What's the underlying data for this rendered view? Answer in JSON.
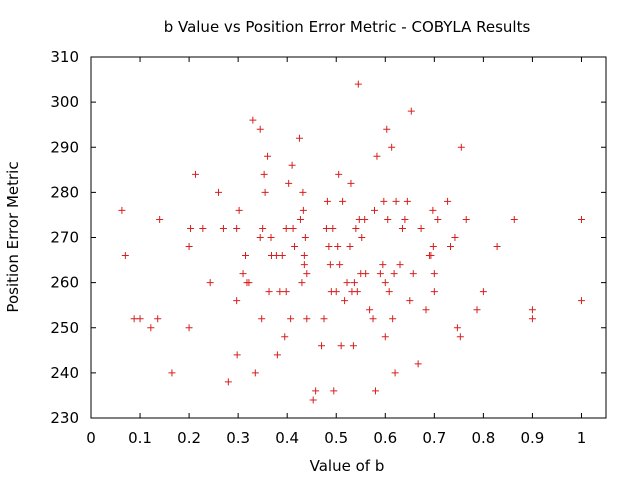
{
  "chart_data": {
    "type": "scatter",
    "title": "b Value vs Position Error Metric - COBYLA Results",
    "xlabel": "Value of b",
    "ylabel": "Position Error Metric",
    "xlim": [
      0,
      1.05
    ],
    "ylim": [
      230,
      310
    ],
    "xticks": [
      "0",
      "0.1",
      "0.2",
      "0.3",
      "0.4",
      "0.5",
      "0.6",
      "0.7",
      "0.8",
      "0.9",
      "1"
    ],
    "xtick_values": [
      0,
      0.1,
      0.2,
      0.3,
      0.4,
      0.5,
      0.6,
      0.7,
      0.8,
      0.9,
      1.0
    ],
    "yticks": [
      "230",
      "240",
      "250",
      "260",
      "270",
      "280",
      "290",
      "300",
      "310"
    ],
    "ytick_values": [
      230,
      240,
      250,
      260,
      270,
      280,
      290,
      300,
      310
    ],
    "grid": false,
    "marker": "plus",
    "color": "#d62020",
    "points": [
      [
        0.063,
        276
      ],
      [
        0.07,
        266
      ],
      [
        0.088,
        252
      ],
      [
        0.1,
        252
      ],
      [
        0.122,
        250
      ],
      [
        0.136,
        252
      ],
      [
        0.14,
        274
      ],
      [
        0.165,
        240
      ],
      [
        0.2,
        250
      ],
      [
        0.2,
        268
      ],
      [
        0.203,
        272
      ],
      [
        0.213,
        284
      ],
      [
        0.228,
        272
      ],
      [
        0.243,
        260
      ],
      [
        0.26,
        280
      ],
      [
        0.27,
        272
      ],
      [
        0.28,
        238
      ],
      [
        0.297,
        256
      ],
      [
        0.297,
        272
      ],
      [
        0.298,
        244
      ],
      [
        0.302,
        276
      ],
      [
        0.31,
        262
      ],
      [
        0.315,
        266
      ],
      [
        0.318,
        260
      ],
      [
        0.322,
        260
      ],
      [
        0.33,
        296
      ],
      [
        0.335,
        240
      ],
      [
        0.345,
        294
      ],
      [
        0.345,
        270
      ],
      [
        0.348,
        252
      ],
      [
        0.35,
        272
      ],
      [
        0.353,
        284
      ],
      [
        0.355,
        280
      ],
      [
        0.36,
        288
      ],
      [
        0.363,
        258
      ],
      [
        0.367,
        270
      ],
      [
        0.368,
        266
      ],
      [
        0.378,
        266
      ],
      [
        0.38,
        244
      ],
      [
        0.385,
        258
      ],
      [
        0.39,
        266
      ],
      [
        0.395,
        248
      ],
      [
        0.398,
        258
      ],
      [
        0.398,
        272
      ],
      [
        0.403,
        282
      ],
      [
        0.407,
        252
      ],
      [
        0.41,
        286
      ],
      [
        0.412,
        272
      ],
      [
        0.415,
        268
      ],
      [
        0.425,
        292
      ],
      [
        0.427,
        274
      ],
      [
        0.43,
        260
      ],
      [
        0.432,
        280
      ],
      [
        0.433,
        276
      ],
      [
        0.435,
        266
      ],
      [
        0.435,
        264
      ],
      [
        0.437,
        270
      ],
      [
        0.44,
        252
      ],
      [
        0.44,
        262
      ],
      [
        0.453,
        234
      ],
      [
        0.458,
        236
      ],
      [
        0.47,
        246
      ],
      [
        0.475,
        252
      ],
      [
        0.48,
        272
      ],
      [
        0.482,
        278
      ],
      [
        0.485,
        268
      ],
      [
        0.488,
        264
      ],
      [
        0.49,
        258
      ],
      [
        0.493,
        272
      ],
      [
        0.495,
        236
      ],
      [
        0.5,
        258
      ],
      [
        0.503,
        268
      ],
      [
        0.505,
        284
      ],
      [
        0.507,
        264
      ],
      [
        0.51,
        246
      ],
      [
        0.513,
        278
      ],
      [
        0.517,
        256
      ],
      [
        0.522,
        260
      ],
      [
        0.528,
        268
      ],
      [
        0.53,
        282
      ],
      [
        0.532,
        258
      ],
      [
        0.535,
        246
      ],
      [
        0.537,
        260
      ],
      [
        0.54,
        272
      ],
      [
        0.543,
        258
      ],
      [
        0.545,
        304
      ],
      [
        0.547,
        274
      ],
      [
        0.55,
        262
      ],
      [
        0.552,
        270
      ],
      [
        0.558,
        274
      ],
      [
        0.56,
        262
      ],
      [
        0.568,
        254
      ],
      [
        0.575,
        252
      ],
      [
        0.578,
        276
      ],
      [
        0.58,
        236
      ],
      [
        0.583,
        288
      ],
      [
        0.59,
        262
      ],
      [
        0.595,
        264
      ],
      [
        0.597,
        278
      ],
      [
        0.6,
        248
      ],
      [
        0.6,
        260
      ],
      [
        0.603,
        294
      ],
      [
        0.605,
        274
      ],
      [
        0.608,
        258
      ],
      [
        0.613,
        290
      ],
      [
        0.615,
        252
      ],
      [
        0.618,
        262
      ],
      [
        0.62,
        240
      ],
      [
        0.622,
        278
      ],
      [
        0.63,
        264
      ],
      [
        0.635,
        272
      ],
      [
        0.64,
        274
      ],
      [
        0.645,
        278
      ],
      [
        0.65,
        256
      ],
      [
        0.653,
        298
      ],
      [
        0.657,
        262
      ],
      [
        0.667,
        242
      ],
      [
        0.673,
        272
      ],
      [
        0.683,
        254
      ],
      [
        0.69,
        266
      ],
      [
        0.693,
        266
      ],
      [
        0.697,
        276
      ],
      [
        0.698,
        268
      ],
      [
        0.7,
        262
      ],
      [
        0.7,
        258
      ],
      [
        0.707,
        274
      ],
      [
        0.727,
        278
      ],
      [
        0.733,
        268
      ],
      [
        0.742,
        270
      ],
      [
        0.747,
        250
      ],
      [
        0.753,
        248
      ],
      [
        0.755,
        290
      ],
      [
        0.765,
        274
      ],
      [
        0.787,
        254
      ],
      [
        0.8,
        258
      ],
      [
        0.828,
        268
      ],
      [
        0.863,
        274
      ],
      [
        0.9,
        252
      ],
      [
        0.9,
        254
      ],
      [
        1.0,
        274
      ],
      [
        1.0,
        256
      ]
    ]
  }
}
